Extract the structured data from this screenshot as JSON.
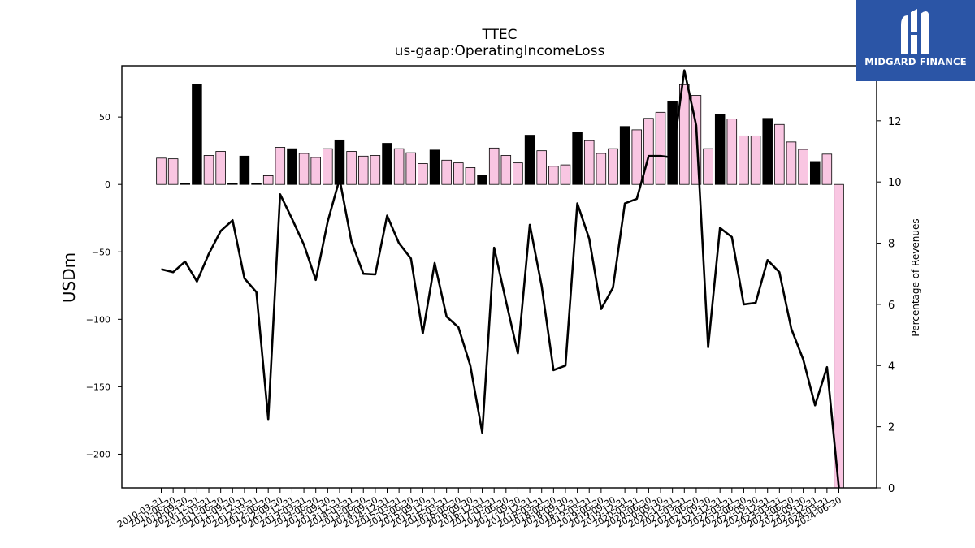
{
  "brand": {
    "name": "MIDGARD FINANCE",
    "background": "#2b55a6",
    "icon": "midgard-m-icon"
  },
  "colors": {
    "bar_default": "#f9c6e2",
    "bar_highlight": "#000000",
    "line": "#000000",
    "axis": "#000000"
  },
  "chart_data": {
    "type": "bar",
    "title": "TTEC",
    "subtitle": "us-gaap:OperatingIncomeLoss",
    "ylabel": "USDm",
    "y2label": "Percentage of Revenues",
    "ylim": [
      -225,
      88
    ],
    "y2lim": [
      0,
      13.8
    ],
    "yticks": [
      50,
      0,
      -50,
      -100,
      -150,
      -200
    ],
    "y2ticks": [
      12,
      10,
      8,
      6,
      4,
      2,
      0
    ],
    "grid": false,
    "legend": "none",
    "categories": [
      "2010-03-31",
      "2010-06-30",
      "2010-09-30",
      "2010-12-31",
      "2011-03-31",
      "2011-06-30",
      "2011-09-30",
      "2011-12-31",
      "2012-03-31",
      "2012-06-30",
      "2012-09-30",
      "2012-12-31",
      "2013-03-31",
      "2013-06-30",
      "2013-09-30",
      "2013-12-31",
      "2014-03-31",
      "2014-06-30",
      "2014-09-30",
      "2014-12-31",
      "2015-03-31",
      "2015-06-30",
      "2015-09-30",
      "2015-12-31",
      "2016-03-31",
      "2016-06-30",
      "2016-09-30",
      "2016-12-31",
      "2017-03-31",
      "2017-06-30",
      "2017-09-30",
      "2017-12-31",
      "2018-03-31",
      "2018-06-30",
      "2018-09-30",
      "2018-12-31",
      "2019-03-31",
      "2019-06-30",
      "2019-09-30",
      "2019-12-31",
      "2020-03-31",
      "2020-06-30",
      "2020-09-30",
      "2020-12-31",
      "2021-03-31",
      "2021-06-30",
      "2021-09-30",
      "2021-12-31",
      "2022-03-31",
      "2022-06-30",
      "2022-09-30",
      "2022-12-31",
      "2023-03-31",
      "2023-06-30",
      "2023-09-30",
      "2023-12-31",
      "2024-03-31",
      "2024-06-30"
    ],
    "series": [
      {
        "kind": "bar",
        "values": [
          19.5,
          19,
          1,
          74,
          21.5,
          24.5,
          1,
          21,
          1,
          6.5,
          27.5,
          26.5,
          23,
          20,
          26.5,
          33,
          24.5,
          21,
          21.5,
          30.5,
          26.5,
          23.5,
          15.5,
          25.5,
          18,
          16,
          12.5,
          6.5,
          27,
          21.5,
          16,
          36.5,
          25,
          13.5,
          14.5,
          39,
          32.5,
          23,
          26.5,
          43,
          40.5,
          49,
          53.5,
          61.5,
          74,
          66,
          26.5,
          52,
          48.5,
          36,
          36,
          49,
          44.5,
          31.5,
          26,
          17,
          22.5,
          -225
        ],
        "highlight": [
          false,
          false,
          true,
          true,
          false,
          false,
          true,
          true,
          true,
          false,
          false,
          true,
          false,
          false,
          false,
          true,
          false,
          false,
          false,
          true,
          false,
          false,
          false,
          true,
          false,
          false,
          false,
          true,
          false,
          false,
          false,
          true,
          false,
          false,
          false,
          true,
          false,
          false,
          false,
          true,
          false,
          false,
          false,
          true,
          false,
          false,
          false,
          true,
          false,
          false,
          false,
          true,
          false,
          false,
          false,
          true,
          false,
          false
        ]
      },
      {
        "kind": "line",
        "axis": "right",
        "values": [
          7.15,
          7.05,
          7.4,
          6.75,
          7.65,
          8.4,
          8.75,
          6.85,
          6.4,
          2.25,
          9.6,
          8.8,
          7.95,
          6.8,
          8.7,
          10.1,
          8.05,
          7.0,
          6.98,
          8.9,
          8.0,
          7.5,
          5.05,
          7.35,
          5.6,
          5.25,
          4.0,
          1.8,
          7.85,
          6.1,
          4.4,
          8.6,
          6.6,
          3.85,
          4.0,
          9.3,
          8.15,
          5.85,
          6.55,
          9.3,
          9.45,
          10.85,
          10.85,
          10.8,
          13.65,
          11.85,
          4.6,
          8.5,
          8.2,
          6.0,
          6.05,
          7.45,
          7.05,
          5.2,
          4.2,
          2.7,
          3.95,
          0
        ]
      }
    ]
  }
}
